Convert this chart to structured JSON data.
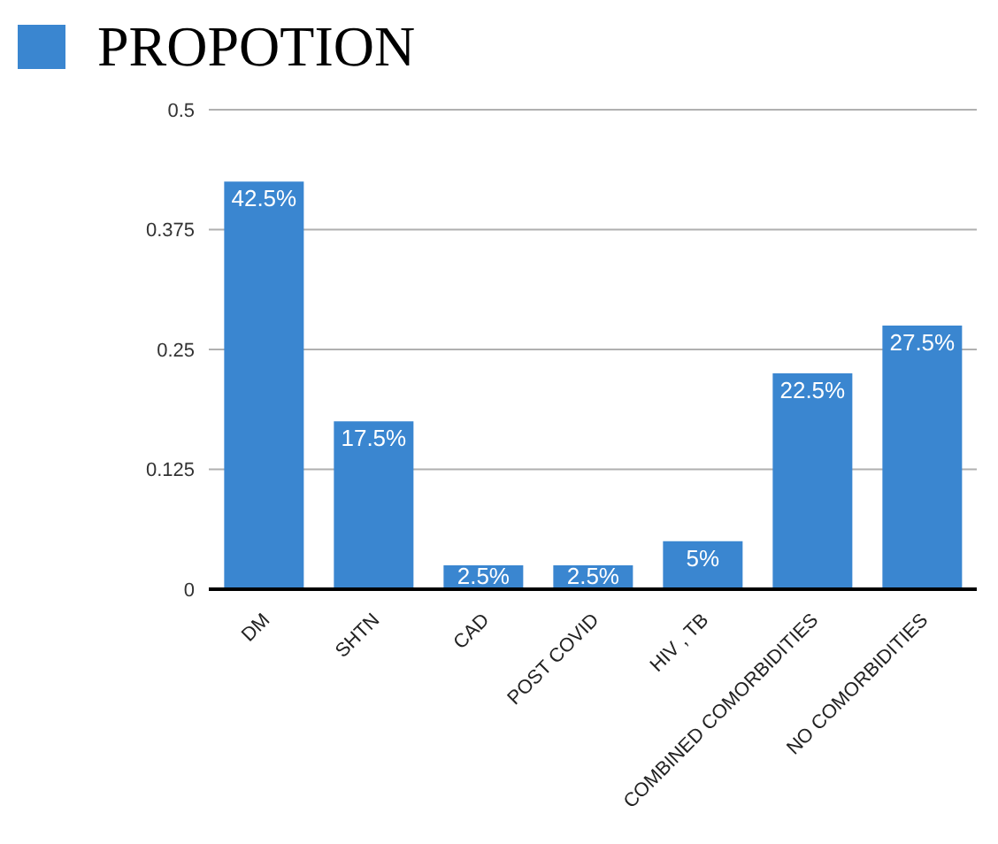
{
  "chart_data": {
    "type": "bar",
    "categories": [
      "DM",
      "SHTN",
      "CAD",
      "POST COVID",
      "HIV , TB",
      "COMBINED COMORBIDITIES",
      "NO COMORBIDITIES"
    ],
    "series": [
      {
        "name": "PROPOTION",
        "color": "#3a86d0",
        "values": [
          0.425,
          0.175,
          0.025,
          0.025,
          0.05,
          0.225,
          0.275
        ],
        "value_labels": [
          "42.5%",
          "17.5%",
          "2.5%",
          "2.5%",
          "5%",
          "22.5%",
          "27.5%"
        ]
      }
    ],
    "ylim": [
      0,
      0.5
    ],
    "yticks": [
      0,
      0.125,
      0.25,
      0.375,
      0.5
    ],
    "grid": "y",
    "legend": "top left"
  }
}
